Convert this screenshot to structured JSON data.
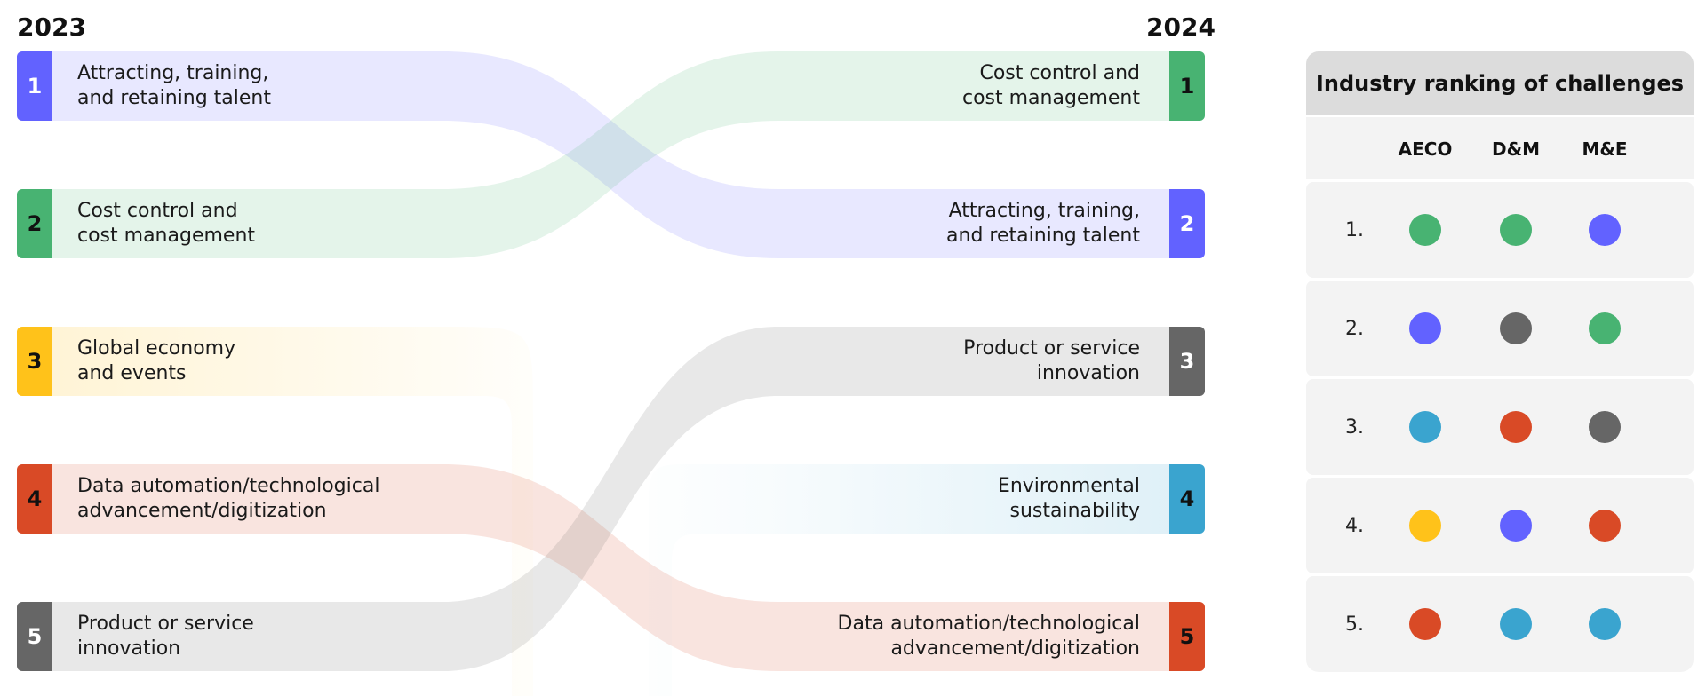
{
  "left_year": "2023",
  "right_year": "2024",
  "colors": {
    "purple": "#6262ff",
    "green": "#48b372",
    "yellow": "#ffc21a",
    "red": "#d94a26",
    "gray": "#666666",
    "blue": "#3aa4cf"
  },
  "left_nodes": [
    {
      "rank": "1",
      "label": "Attracting, training,\nand retaining talent",
      "color": "purple",
      "text_color": "#ffffff"
    },
    {
      "rank": "2",
      "label": "Cost control and\ncost management",
      "color": "green",
      "text_color": "#111111"
    },
    {
      "rank": "3",
      "label": "Global economy\nand events",
      "color": "yellow",
      "text_color": "#111111"
    },
    {
      "rank": "4",
      "label": "Data automation/technological\nadvancement/digitization",
      "color": "red",
      "text_color": "#111111"
    },
    {
      "rank": "5",
      "label": "Product or service\ninnovation",
      "color": "gray",
      "text_color": "#ffffff"
    }
  ],
  "right_nodes": [
    {
      "rank": "1",
      "label": "Cost control and\ncost management",
      "color": "green",
      "text_color": "#111111"
    },
    {
      "rank": "2",
      "label": "Attracting, training,\nand retaining talent",
      "color": "purple",
      "text_color": "#ffffff"
    },
    {
      "rank": "3",
      "label": "Product or service\ninnovation",
      "color": "gray",
      "text_color": "#ffffff"
    },
    {
      "rank": "4",
      "label": "Environmental\nsustainability",
      "color": "blue",
      "text_color": "#111111"
    },
    {
      "rank": "5",
      "label": "Data automation/technological\nadvancement/digitization",
      "color": "red",
      "text_color": "#111111"
    }
  ],
  "flows": [
    {
      "from": 1,
      "to": 2,
      "color": "purple"
    },
    {
      "from": 2,
      "to": 1,
      "color": "green"
    },
    {
      "from": 4,
      "to": 5,
      "color": "red"
    },
    {
      "from": 5,
      "to": 3,
      "color": "gray"
    },
    {
      "from": 3,
      "to": null,
      "color": "yellow"
    },
    {
      "from": null,
      "to": 4,
      "color": "blue"
    }
  ],
  "panel": {
    "title": "Industry ranking of challenges",
    "columns": [
      "AECO",
      "D&M",
      "M&E"
    ],
    "rows": [
      {
        "rank": "1.",
        "dots": [
          "green",
          "green",
          "purple"
        ]
      },
      {
        "rank": "2.",
        "dots": [
          "purple",
          "gray",
          "green"
        ]
      },
      {
        "rank": "3.",
        "dots": [
          "blue",
          "red",
          "gray"
        ]
      },
      {
        "rank": "4.",
        "dots": [
          "yellow",
          "purple",
          "red"
        ]
      },
      {
        "rank": "5.",
        "dots": [
          "red",
          "blue",
          "blue"
        ]
      }
    ]
  }
}
